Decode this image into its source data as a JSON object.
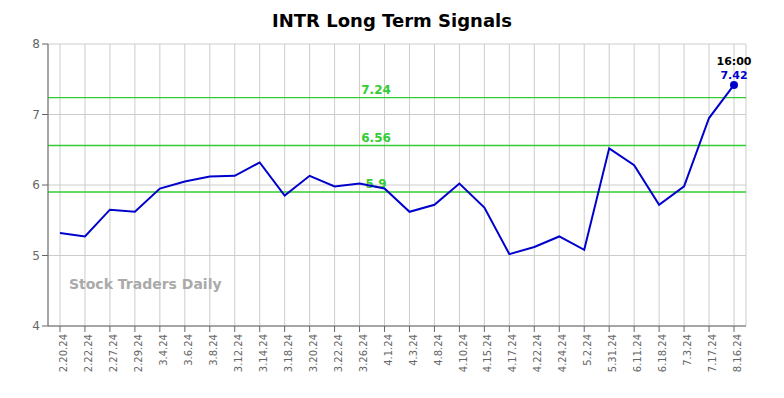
{
  "chart_data": {
    "type": "line",
    "title": "INTR Long Term Signals",
    "categories": [
      "2.20.24",
      "2.22.24",
      "2.27.24",
      "2.29.24",
      "3.4.24",
      "3.6.24",
      "3.8.24",
      "3.12.24",
      "3.14.24",
      "3.18.24",
      "3.20.24",
      "3.22.24",
      "3.26.24",
      "4.1.24",
      "4.3.24",
      "4.8.24",
      "4.10.24",
      "4.15.24",
      "4.17.24",
      "4.22.24",
      "4.24.24",
      "5.2.24",
      "5.31.24",
      "6.11.24",
      "6.18.24",
      "7.3.24",
      "7.17.24",
      "8.16.24"
    ],
    "values": [
      5.32,
      5.27,
      5.65,
      5.62,
      5.95,
      6.05,
      6.12,
      6.13,
      6.32,
      5.85,
      6.13,
      5.98,
      6.02,
      5.95,
      5.62,
      5.72,
      6.02,
      5.68,
      5.02,
      5.12,
      5.27,
      5.08,
      6.52,
      6.28,
      5.72,
      5.98,
      6.95,
      7.42
    ],
    "color": "#0000cc",
    "ylim": [
      4.0,
      8.0
    ],
    "yticks": [
      4,
      5,
      6,
      7,
      8
    ],
    "grid": true,
    "hlines": [
      {
        "value": 5.9,
        "label": "5.9",
        "color": "#33cc33"
      },
      {
        "value": 6.56,
        "label": "6.56",
        "color": "#33cc33"
      },
      {
        "value": 7.24,
        "label": "7.24",
        "color": "#33cc33"
      }
    ],
    "annotations": [
      {
        "text": "16:00",
        "x": "8.16.24",
        "y": 7.42,
        "color": "#000000"
      },
      {
        "text": "7.42",
        "x": "8.16.24",
        "y": 7.42,
        "color": "#0000cc"
      }
    ],
    "watermark": "Stock Traders Daily"
  }
}
